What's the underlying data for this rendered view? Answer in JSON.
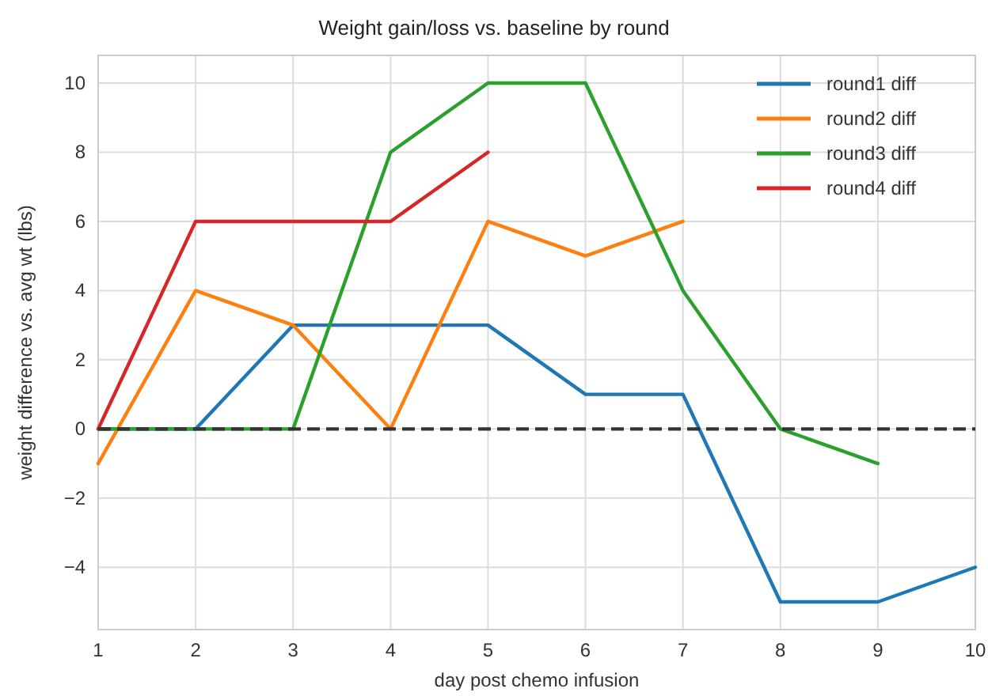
{
  "chart_data": {
    "type": "line",
    "title": "Weight gain/loss vs. baseline by round",
    "xlabel": "day post chemo infusion",
    "ylabel": "weight difference vs. avg wt (lbs)",
    "x": [
      1,
      2,
      3,
      4,
      5,
      6,
      7,
      8,
      9,
      10
    ],
    "series": [
      {
        "name": "round1 diff",
        "color": "#1f77b4",
        "values": [
          0,
          0,
          3,
          3,
          3,
          1,
          1,
          -5,
          -5,
          -4
        ]
      },
      {
        "name": "round2 diff",
        "color": "#ff7f0e",
        "values": [
          -1,
          4,
          3,
          0,
          6,
          5,
          6,
          null,
          null,
          null
        ]
      },
      {
        "name": "round3 diff",
        "color": "#2ca02c",
        "values": [
          0,
          0,
          0,
          8,
          10,
          10,
          4,
          0,
          -1,
          null
        ]
      },
      {
        "name": "round4 diff",
        "color": "#d62728",
        "values": [
          0,
          6,
          6,
          6,
          8,
          null,
          null,
          null,
          null,
          null
        ]
      }
    ],
    "xlim": [
      1,
      10
    ],
    "xticks": [
      1,
      2,
      3,
      4,
      5,
      6,
      7,
      8,
      9,
      10
    ],
    "ylim": [
      -5.8,
      10.8
    ],
    "yticks": [
      {
        "value": -4,
        "label": "−4"
      },
      {
        "value": -2,
        "label": "−2"
      },
      0,
      2,
      4,
      6,
      8,
      10
    ],
    "ref_lines": [
      {
        "axis": "y",
        "value": 0,
        "color": "#333333",
        "line_style": "dashed"
      }
    ],
    "grid": true,
    "legend": "top right",
    "line_style": "solid",
    "marker": "none"
  }
}
